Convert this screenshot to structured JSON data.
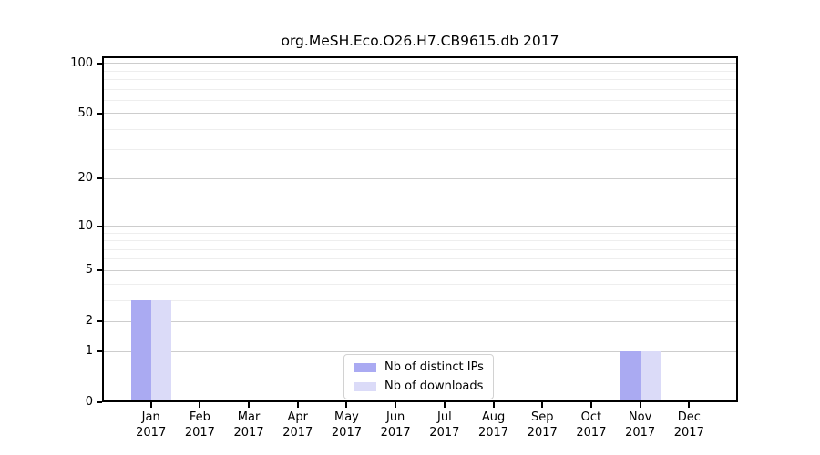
{
  "title": "org.MeSH.Eco.O26.H7.CB9615.db 2017",
  "colors": {
    "distinct_ips": "#aaaaf2",
    "downloads": "#dbdbf8",
    "grid_major": "#cdcdcd",
    "grid_minor": "#eeeeee",
    "spine": "#000000",
    "background": "#ffffff"
  },
  "legend": {
    "items": [
      {
        "label": "Nb of distinct IPs",
        "color_key": "distinct_ips"
      },
      {
        "label": "Nb of downloads",
        "color_key": "downloads"
      }
    ]
  },
  "chart_data": {
    "type": "bar",
    "title": "org.MeSH.Eco.O26.H7.CB9615.db 2017",
    "categories": [
      "Jan 2017",
      "Feb 2017",
      "Mar 2017",
      "Apr 2017",
      "May 2017",
      "Jun 2017",
      "Jul 2017",
      "Aug 2017",
      "Sep 2017",
      "Oct 2017",
      "Nov 2017",
      "Dec 2017"
    ],
    "series": [
      {
        "name": "Nb of distinct IPs",
        "values": [
          3,
          0,
          0,
          0,
          0,
          0,
          0,
          0,
          0,
          0,
          1,
          0
        ]
      },
      {
        "name": "Nb of downloads",
        "values": [
          3,
          0,
          0,
          0,
          0,
          0,
          0,
          0,
          0,
          0,
          1,
          0
        ]
      }
    ],
    "xlabel": "",
    "ylabel": "",
    "yscale": "log1p",
    "yticks": [
      0,
      1,
      2,
      5,
      10,
      20,
      50,
      100
    ],
    "minor_yticks": [
      3,
      4,
      6,
      7,
      8,
      9,
      30,
      40,
      60,
      70,
      80,
      90
    ],
    "ylim": [
      0,
      110
    ],
    "grid": "horizontal",
    "legend_position": "bottom-center"
  }
}
